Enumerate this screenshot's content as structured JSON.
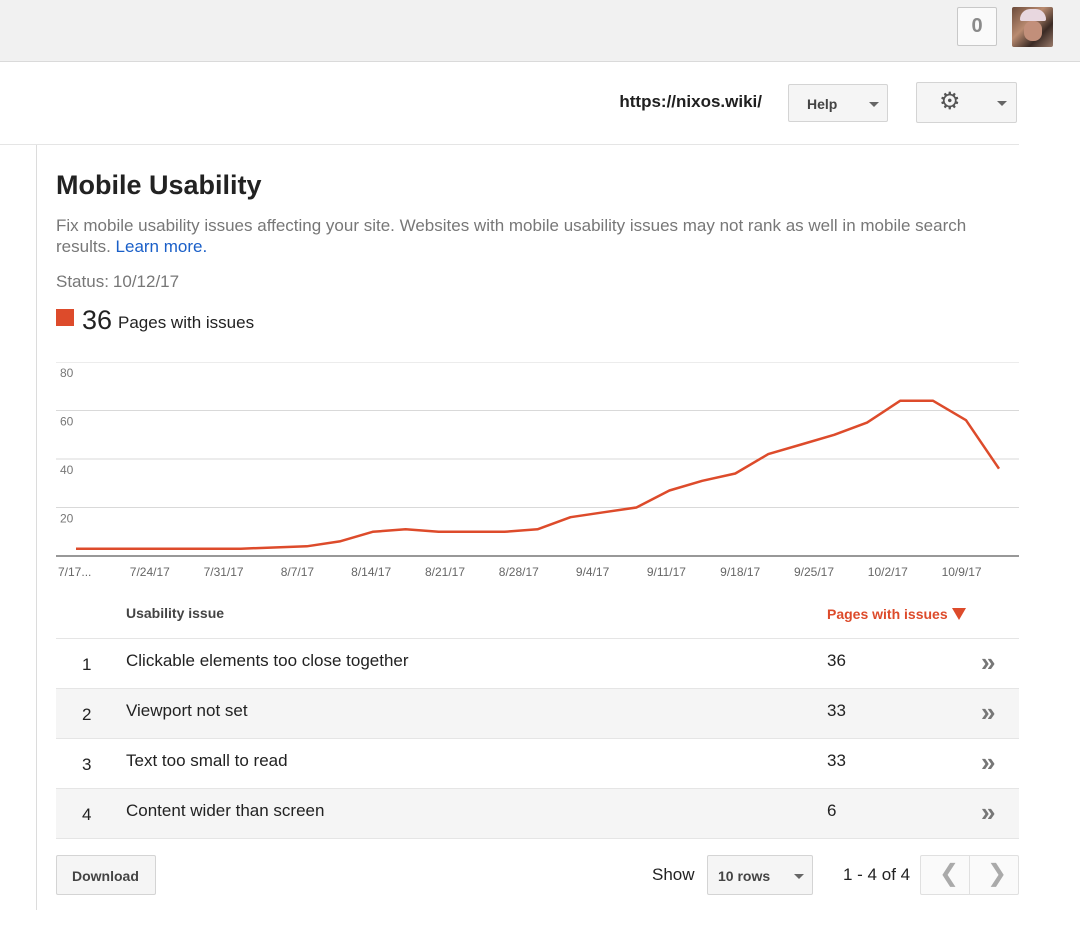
{
  "topbar": {
    "notification_count": "0"
  },
  "header": {
    "site_url": "https://nixos.wiki/",
    "help_label": "Help"
  },
  "main": {
    "title": "Mobile Usability",
    "description": "Fix mobile usability issues affecting your site. Websites with mobile usability issues may not rank as well in mobile search results.",
    "learn_more": "Learn more.",
    "status_label": "Status:",
    "status_date": "10/12/17",
    "legend_count": "36",
    "legend_label": "Pages with issues"
  },
  "chart_data": {
    "type": "line",
    "series_color": "#dd4b2b",
    "ylim": [
      0,
      80
    ],
    "y_ticks": [
      20,
      40,
      60,
      80
    ],
    "x_tick_labels": [
      "7/17...",
      "7/24/17",
      "7/31/17",
      "8/7/17",
      "8/14/17",
      "8/21/17",
      "8/28/17",
      "9/4/17",
      "9/11/17",
      "9/18/17",
      "9/25/17",
      "10/2/17",
      "10/9/17"
    ],
    "values": [
      3,
      3,
      3,
      3,
      3,
      3,
      3.5,
      4,
      6,
      10,
      11,
      10,
      10,
      10,
      11,
      16,
      18,
      20,
      27,
      31,
      34,
      42,
      46,
      50,
      55,
      64,
      64,
      56,
      36
    ],
    "grid": true
  },
  "table": {
    "header_issue": "Usability issue",
    "header_pages": "Pages with issues",
    "rows": [
      {
        "index": "1",
        "issue": "Clickable elements too close together",
        "pages": "36"
      },
      {
        "index": "2",
        "issue": "Viewport not set",
        "pages": "33"
      },
      {
        "index": "3",
        "issue": "Text too small to read",
        "pages": "33"
      },
      {
        "index": "4",
        "issue": "Content wider than screen",
        "pages": "6"
      }
    ]
  },
  "footer": {
    "download_label": "Download",
    "show_label": "Show",
    "rows_option": "10 rows",
    "range_text": "1 - 4 of 4"
  },
  "icons": {
    "gear": "gear-icon",
    "caret": "chevron-down-icon",
    "row_chevron": "double-chevron-right-icon",
    "prev": "chevron-left-icon",
    "next": "chevron-right-icon"
  }
}
